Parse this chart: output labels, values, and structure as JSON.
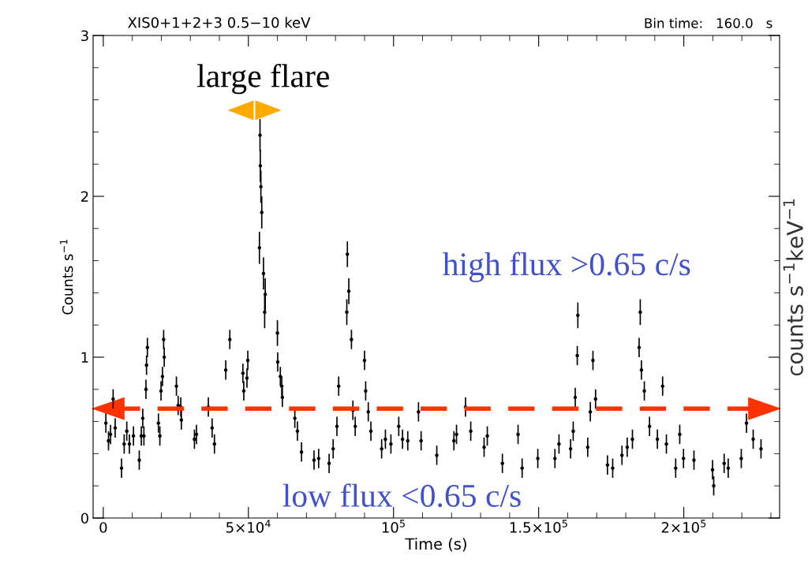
{
  "chart_data": {
    "type": "scatter",
    "title": "XIS0+1+2+3 0.5−10 keV",
    "subtitle": "Bin time:   160.0   s",
    "xlabel": "Time (s)",
    "ylabel": "Counts s$^{−1}$",
    "y2label": "counts s$^{−1}$keV$^{−1}$",
    "xlim": [
      -3500,
      233000
    ],
    "ylim": [
      0,
      3
    ],
    "xticks": [
      0,
      {
        "value": 50000,
        "label": "5×10$^{4}$"
      },
      {
        "value": 100000,
        "label": "10$^{5}$"
      },
      {
        "value": 150000,
        "label": "1.5×10$^{5}$"
      },
      {
        "value": 200000,
        "label": "2×10$^{5}$"
      },
      {
        "value": 10000,
        "label": null
      },
      {
        "value": 20000,
        "label": null
      },
      {
        "value": 30000,
        "label": null
      },
      {
        "value": 40000,
        "label": null
      },
      {
        "value": 60000,
        "label": null
      },
      {
        "value": 70000,
        "label": null
      },
      {
        "value": 80000,
        "label": null
      },
      {
        "value": 90000,
        "label": null
      },
      {
        "value": 110000,
        "label": null
      },
      {
        "value": 120000,
        "label": null
      },
      {
        "value": 130000,
        "label": null
      },
      {
        "value": 140000,
        "label": null
      },
      {
        "value": 160000,
        "label": null
      },
      {
        "value": 170000,
        "label": null
      },
      {
        "value": 180000,
        "label": null
      },
      {
        "value": 190000,
        "label": null
      },
      {
        "value": 210000,
        "label": null
      },
      {
        "value": 220000,
        "label": null
      },
      {
        "value": 230000,
        "label": null
      }
    ],
    "yticks": [
      0,
      1,
      2,
      3,
      {
        "value": 0.2,
        "label": null
      },
      {
        "value": 0.4,
        "label": null
      },
      {
        "value": 0.6,
        "label": null
      },
      {
        "value": 0.8,
        "label": null
      },
      {
        "value": 1.2,
        "label": null
      },
      {
        "value": 1.4,
        "label": null
      },
      {
        "value": 1.6,
        "label": null
      },
      {
        "value": 1.8,
        "label": null
      },
      {
        "value": 2.2,
        "label": null
      },
      {
        "value": 2.4,
        "label": null
      },
      {
        "value": 2.6,
        "label": null
      },
      {
        "value": 2.8,
        "label": null
      }
    ],
    "grid": false,
    "series": [
      {
        "color": "#000000",
        "x": [
          900,
          1800,
          2500,
          3400,
          4100,
          6300,
          7200,
          8100,
          9000,
          10400,
          12400,
          13100,
          13600,
          14000,
          14700,
          14900,
          15200,
          19000,
          19500,
          19900,
          20400,
          20800,
          21000,
          25200,
          25800,
          26700,
          26900,
          31400,
          32100,
          36200,
          37500,
          38300,
          42200,
          43600,
          48100,
          48400,
          49500,
          49800,
          53800,
          54000,
          54100,
          54300,
          54600,
          55200,
          55600,
          55800,
          60000,
          60100,
          61000,
          61500,
          61700,
          66000,
          66900,
          68300,
          72600,
          74200,
          77800,
          79200,
          80500,
          81100,
          83900,
          84100,
          84600,
          85500,
          86000,
          86800,
          90000,
          90400,
          91300,
          92200,
          95900,
          97200,
          99100,
          101800,
          103100,
          104900,
          108600,
          109500,
          114900,
          120800,
          121700,
          124800,
          126600,
          131200,
          132300,
          137500,
          142900,
          144300,
          149700,
          155600,
          157000,
          161000,
          161900,
          162600,
          163300,
          163500,
          166900,
          167800,
          168700,
          169600,
          173700,
          175500,
          178700,
          180500,
          182300,
          184600,
          185000,
          185400,
          186400,
          188200,
          190900,
          192700,
          194000,
          197200,
          198600,
          199900,
          203500,
          209900,
          210300,
          213900,
          215300,
          219800,
          221600,
          223900,
          226600
        ],
        "values": [
          0.59,
          0.48,
          0.52,
          0.74,
          0.56,
          0.31,
          0.46,
          0.54,
          0.46,
          0.51,
          0.36,
          0.51,
          0.62,
          0.51,
          0.8,
          0.95,
          1.06,
          0.59,
          0.51,
          0.79,
          0.88,
          1.11,
          1.0,
          0.82,
          0.7,
          0.69,
          0.61,
          0.49,
          0.52,
          0.69,
          0.56,
          0.46,
          0.92,
          1.11,
          0.9,
          0.79,
          0.87,
          0.98,
          1.68,
          2.38,
          2.19,
          2.06,
          1.9,
          1.52,
          1.28,
          1.39,
          1.15,
          0.97,
          0.88,
          0.82,
          0.75,
          0.62,
          0.54,
          0.41,
          0.36,
          0.37,
          0.34,
          0.43,
          0.57,
          0.82,
          1.28,
          1.64,
          1.41,
          1.11,
          0.67,
          0.57,
          0.98,
          0.79,
          0.66,
          0.54,
          0.43,
          0.49,
          0.46,
          0.57,
          0.49,
          0.48,
          0.66,
          0.48,
          0.39,
          0.48,
          0.52,
          0.69,
          0.54,
          0.44,
          0.51,
          0.34,
          0.52,
          0.31,
          0.37,
          0.37,
          0.46,
          0.43,
          0.54,
          0.75,
          1.01,
          1.26,
          0.44,
          0.66,
          0.98,
          0.74,
          0.33,
          0.31,
          0.39,
          0.44,
          0.49,
          1.06,
          1.28,
          0.92,
          0.79,
          0.57,
          0.49,
          0.82,
          0.46,
          0.31,
          0.52,
          0.37,
          0.36,
          0.3,
          0.2,
          0.34,
          0.31,
          0.37,
          0.59,
          0.49,
          0.43
        ],
        "errors": [
          0.06,
          0.06,
          0.06,
          0.06,
          0.06,
          0.06,
          0.06,
          0.06,
          0.06,
          0.06,
          0.06,
          0.06,
          0.06,
          0.06,
          0.06,
          0.06,
          0.06,
          0.06,
          0.06,
          0.06,
          0.06,
          0.06,
          0.06,
          0.06,
          0.06,
          0.06,
          0.06,
          0.06,
          0.06,
          0.06,
          0.06,
          0.06,
          0.06,
          0.06,
          0.06,
          0.06,
          0.06,
          0.06,
          0.1,
          0.1,
          0.1,
          0.1,
          0.1,
          0.1,
          0.1,
          0.1,
          0.08,
          0.06,
          0.06,
          0.06,
          0.06,
          0.06,
          0.06,
          0.06,
          0.06,
          0.06,
          0.06,
          0.06,
          0.06,
          0.06,
          0.08,
          0.08,
          0.08,
          0.06,
          0.06,
          0.06,
          0.06,
          0.06,
          0.06,
          0.06,
          0.06,
          0.06,
          0.06,
          0.06,
          0.06,
          0.06,
          0.06,
          0.06,
          0.06,
          0.06,
          0.06,
          0.06,
          0.06,
          0.06,
          0.06,
          0.06,
          0.06,
          0.06,
          0.06,
          0.06,
          0.06,
          0.06,
          0.06,
          0.06,
          0.06,
          0.08,
          0.06,
          0.06,
          0.06,
          0.06,
          0.06,
          0.06,
          0.06,
          0.06,
          0.06,
          0.06,
          0.08,
          0.06,
          0.06,
          0.06,
          0.06,
          0.06,
          0.06,
          0.06,
          0.06,
          0.06,
          0.06,
          0.06,
          0.06,
          0.06,
          0.06,
          0.06,
          0.06,
          0.06,
          0.06
        ]
      }
    ],
    "ref_lines": [
      {
        "axis": "y",
        "value": 0.68,
        "color": "#ff3300",
        "line_style": "dashed"
      }
    ],
    "annotations": [
      "large flare",
      "high flux >0.65 c/s",
      "low flux <0.65 c/s"
    ]
  }
}
